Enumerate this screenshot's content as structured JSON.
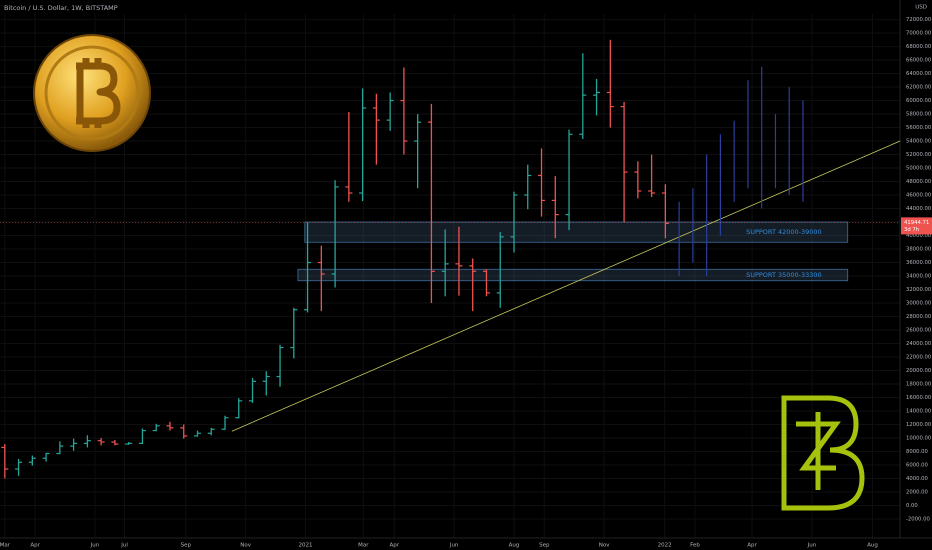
{
  "chart_data": {
    "type": "ohlc",
    "title": "Bitcoin / U.S. Dollar, 1W, BITSTAMP",
    "currency": "USD",
    "up_color": "#26a69a",
    "down_color": "#ef5350",
    "x": [
      0,
      2,
      4,
      6,
      8,
      10,
      12,
      14,
      16,
      18,
      20,
      22,
      24,
      26,
      28,
      30,
      32,
      34,
      36,
      38,
      40,
      42,
      44,
      46,
      48,
      50,
      52,
      54,
      56,
      58,
      60,
      62,
      64,
      66,
      68,
      70,
      72,
      74,
      76,
      78,
      80,
      82,
      84,
      86,
      88,
      90,
      92,
      94,
      96
    ],
    "open": [
      8600,
      5400,
      6400,
      7000,
      7700,
      8800,
      9200,
      9600,
      9400,
      9100,
      9200,
      11100,
      11800,
      11500,
      10300,
      10700,
      11300,
      13000,
      15500,
      18400,
      19100,
      23400,
      29000,
      36000,
      34300,
      47200,
      46300,
      58900,
      57100,
      60000,
      54000,
      56800,
      34700,
      35800,
      35500,
      34700,
      31500,
      39800,
      46000,
      48900,
      45200,
      43100,
      55000,
      60800,
      61200,
      59100,
      49400,
      46600,
      46300
    ],
    "high": [
      9100,
      6900,
      7400,
      7800,
      9500,
      9900,
      10400,
      10000,
      9700,
      9400,
      11400,
      12100,
      12400,
      12000,
      11100,
      11500,
      13300,
      15900,
      18900,
      19900,
      23800,
      29300,
      41900,
      38500,
      48200,
      58300,
      61800,
      61000,
      61200,
      64900,
      58000,
      59500,
      40900,
      41300,
      36600,
      35000,
      40500,
      46500,
      50500,
      52900,
      48800,
      55700,
      67000,
      63200,
      69000,
      59800,
      51000,
      52000,
      47600
    ],
    "low": [
      4000,
      4400,
      5900,
      6500,
      7600,
      8100,
      8600,
      8900,
      8900,
      9000,
      9100,
      11000,
      11100,
      9900,
      10200,
      10400,
      11200,
      12900,
      15200,
      16300,
      17600,
      21800,
      28600,
      28800,
      32300,
      45000,
      45100,
      50500,
      55500,
      52000,
      47000,
      30000,
      31000,
      31100,
      28800,
      31000,
      29300,
      37500,
      43900,
      42800,
      39600,
      40800,
      54300,
      57800,
      56000,
      42000,
      45500,
      45700,
      39600
    ],
    "close": [
      5400,
      6400,
      7000,
      7700,
      8800,
      9200,
      9600,
      9400,
      9100,
      9200,
      11100,
      11800,
      11500,
      10300,
      10700,
      11300,
      13000,
      15500,
      18400,
      19100,
      23400,
      29000,
      36000,
      34300,
      47200,
      46300,
      58900,
      57100,
      60000,
      54000,
      56800,
      34700,
      35800,
      35500,
      34700,
      31500,
      39800,
      46000,
      48900,
      45200,
      43100,
      55000,
      60800,
      61200,
      59100,
      49400,
      46600,
      46300,
      41800
    ],
    "projection": {
      "color": "#2a3f9e",
      "x": [
        98,
        100,
        102,
        104,
        106,
        108,
        110,
        112,
        114,
        116
      ],
      "low": [
        34000,
        36000,
        34000,
        40000,
        45000,
        47000,
        44000,
        47000,
        46000,
        45000
      ],
      "high": [
        45000,
        47000,
        52000,
        55000,
        57000,
        63000,
        65000,
        58000,
        62000,
        60000
      ]
    },
    "zones": [
      {
        "label": "SUPPORT  42000-39000",
        "high": 42000,
        "low": 39000,
        "start": 43.6,
        "end": 122.5
      },
      {
        "label": "SUPPORT  35000-33300",
        "high": 35000,
        "low": 33300,
        "start": 42.6,
        "end": 122.5
      }
    ],
    "trendline": {
      "color": "#c8c85a",
      "x": [
        33,
        130.1
      ],
      "y": [
        11000,
        54000
      ]
    },
    "last_price": {
      "value": 41944.71,
      "label": "41944.71"
    },
    "countdown": "3d 7h",
    "xlim": [
      -0.7,
      130.1
    ],
    "ylim": [
      -6600,
      74900
    ],
    "xticks": [
      {
        "value": 0,
        "label": "Mar"
      },
      {
        "value": 4.4,
        "label": "Apr"
      },
      {
        "value": 13.1,
        "label": "Jun"
      },
      {
        "value": 17.4,
        "label": "Jul"
      },
      {
        "value": 26.3,
        "label": "Sep"
      },
      {
        "value": 35,
        "label": "Nov"
      },
      {
        "value": 43.7,
        "label": "2021"
      },
      {
        "value": 52.1,
        "label": "Mar"
      },
      {
        "value": 56.6,
        "label": "Apr"
      },
      {
        "value": 65.3,
        "label": "Jun"
      },
      {
        "value": 74,
        "label": "Aug"
      },
      {
        "value": 78.4,
        "label": "Sep"
      },
      {
        "value": 87.1,
        "label": "Nov"
      },
      {
        "value": 95.9,
        "label": "2022"
      },
      {
        "value": 100.3,
        "label": "Feb"
      },
      {
        "value": 108.6,
        "label": "Apr"
      },
      {
        "value": 117.3,
        "label": "Jun"
      },
      {
        "value": 126.1,
        "label": "Aug"
      }
    ],
    "yticks": [
      {
        "value": -2000,
        "label": "-2000.00"
      },
      {
        "value": 0,
        "label": "0.00"
      },
      {
        "value": 2000,
        "label": "2000.00"
      },
      {
        "value": 4000,
        "label": "4000.00"
      },
      {
        "value": 6000,
        "label": "6000.00"
      },
      {
        "value": 8000,
        "label": "8000.00"
      },
      {
        "value": 10000,
        "label": "10000.00"
      },
      {
        "value": 12000,
        "label": "12000.00"
      },
      {
        "value": 14000,
        "label": "14000.00"
      },
      {
        "value": 16000,
        "label": "16000.00"
      },
      {
        "value": 18000,
        "label": "18000.00"
      },
      {
        "value": 20000,
        "label": "20000.00"
      },
      {
        "value": 22000,
        "label": "22000.00"
      },
      {
        "value": 24000,
        "label": "24000.00"
      },
      {
        "value": 26000,
        "label": "26000.00"
      },
      {
        "value": 28000,
        "label": "28000.00"
      },
      {
        "value": 30000,
        "label": "30000.00"
      },
      {
        "value": 32000,
        "label": "32000.00"
      },
      {
        "value": 34000,
        "label": "34000.00"
      },
      {
        "value": 36000,
        "label": "36000.00"
      },
      {
        "value": 38000,
        "label": "38000.00"
      },
      {
        "value": 40000,
        "label": "40000.00"
      },
      {
        "value": 42000,
        "label": "42000.00"
      },
      {
        "value": 44000,
        "label": "44000.00"
      },
      {
        "value": 46000,
        "label": "46000.00"
      },
      {
        "value": 48000,
        "label": "48000.00"
      },
      {
        "value": 50000,
        "label": "50000.00"
      },
      {
        "value": 52000,
        "label": "52000.00"
      },
      {
        "value": 54000,
        "label": "54000.00"
      },
      {
        "value": 56000,
        "label": "56000.00"
      },
      {
        "value": 58000,
        "label": "58000.00"
      },
      {
        "value": 60000,
        "label": "60000.00"
      },
      {
        "value": 62000,
        "label": "62000.00"
      },
      {
        "value": 64000,
        "label": "64000.00"
      },
      {
        "value": 66000,
        "label": "66000.00"
      },
      {
        "value": 68000,
        "label": "68000.00"
      },
      {
        "value": 70000,
        "label": "70000.00"
      },
      {
        "value": 72000,
        "label": "72000.00"
      }
    ],
    "grid": true
  }
}
